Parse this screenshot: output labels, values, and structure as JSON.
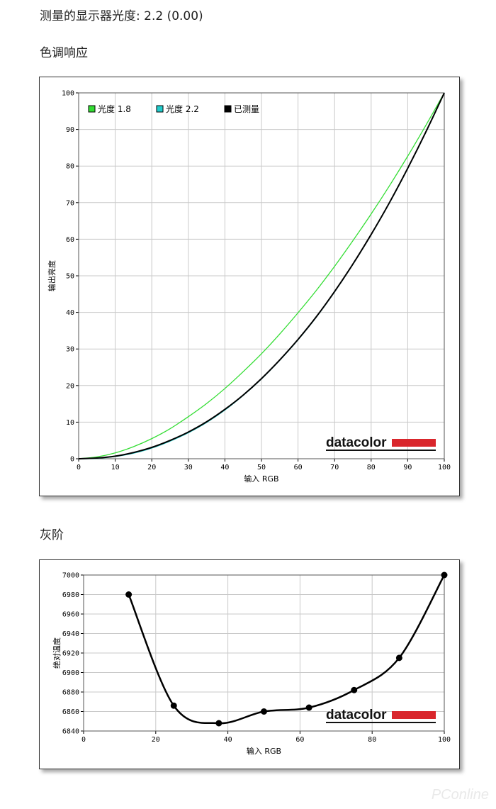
{
  "header": {
    "measured_label": "测量的显示器光度:  2.2 (0.00)"
  },
  "sections": {
    "tone_title": "色调响应",
    "gray_title": "灰阶"
  },
  "brand": {
    "logo_text": "datacolor",
    "accent": "#d9262c"
  },
  "watermark": "PConline",
  "chart_data": [
    {
      "type": "line",
      "title": "色调响应",
      "xlabel": "输入 RGB",
      "ylabel": "输出亮度",
      "xlim": [
        0,
        100
      ],
      "ylim": [
        0,
        100
      ],
      "xticks": [
        0,
        10,
        20,
        30,
        40,
        50,
        60,
        70,
        80,
        90,
        100
      ],
      "yticks": [
        0,
        10,
        20,
        30,
        40,
        50,
        60,
        70,
        80,
        90,
        100
      ],
      "grid": true,
      "legend_position": "top-left",
      "x": [
        0,
        5,
        10,
        15,
        20,
        25,
        30,
        35,
        40,
        45,
        50,
        55,
        60,
        65,
        70,
        75,
        80,
        85,
        90,
        95,
        100
      ],
      "series": [
        {
          "name": "光度 1.8",
          "color": "#33dd33",
          "values": [
            0,
            0.5,
            1.6,
            3.3,
            5.5,
            8.2,
            11.5,
            15.1,
            19.2,
            23.8,
            28.7,
            34.1,
            39.9,
            46.0,
            52.6,
            59.6,
            66.9,
            74.6,
            82.7,
            91.2,
            100
          ]
        },
        {
          "name": "光度 2.2",
          "color": "#22cccc",
          "values": [
            0,
            0.1,
            0.6,
            1.5,
            2.9,
            4.8,
            7.1,
            9.9,
            13.3,
            17.3,
            21.8,
            26.9,
            32.5,
            38.7,
            45.6,
            53.1,
            61.2,
            69.9,
            79.3,
            89.3,
            100
          ]
        },
        {
          "name": "已测量",
          "color": "#000000",
          "values": [
            0,
            0.2,
            0.7,
            1.7,
            3.1,
            5.0,
            7.3,
            10.1,
            13.5,
            17.4,
            21.9,
            27.0,
            32.6,
            38.8,
            45.7,
            53.2,
            61.3,
            70.0,
            79.4,
            89.4,
            100
          ]
        }
      ]
    },
    {
      "type": "line",
      "title": "灰阶",
      "xlabel": "输入 RGB",
      "ylabel": "绝对温度",
      "xlim": [
        0,
        100
      ],
      "ylim": [
        6840,
        7000
      ],
      "xticks": [
        0,
        20,
        40,
        60,
        80,
        100
      ],
      "yticks": [
        6840,
        6860,
        6880,
        6900,
        6920,
        6940,
        6960,
        6980,
        7000
      ],
      "grid": true,
      "x": [
        12.5,
        25,
        37.5,
        50,
        62.5,
        75,
        87.5,
        100
      ],
      "values": [
        6980,
        6866,
        6848,
        6860,
        6864,
        6882,
        6915,
        7000
      ]
    }
  ]
}
